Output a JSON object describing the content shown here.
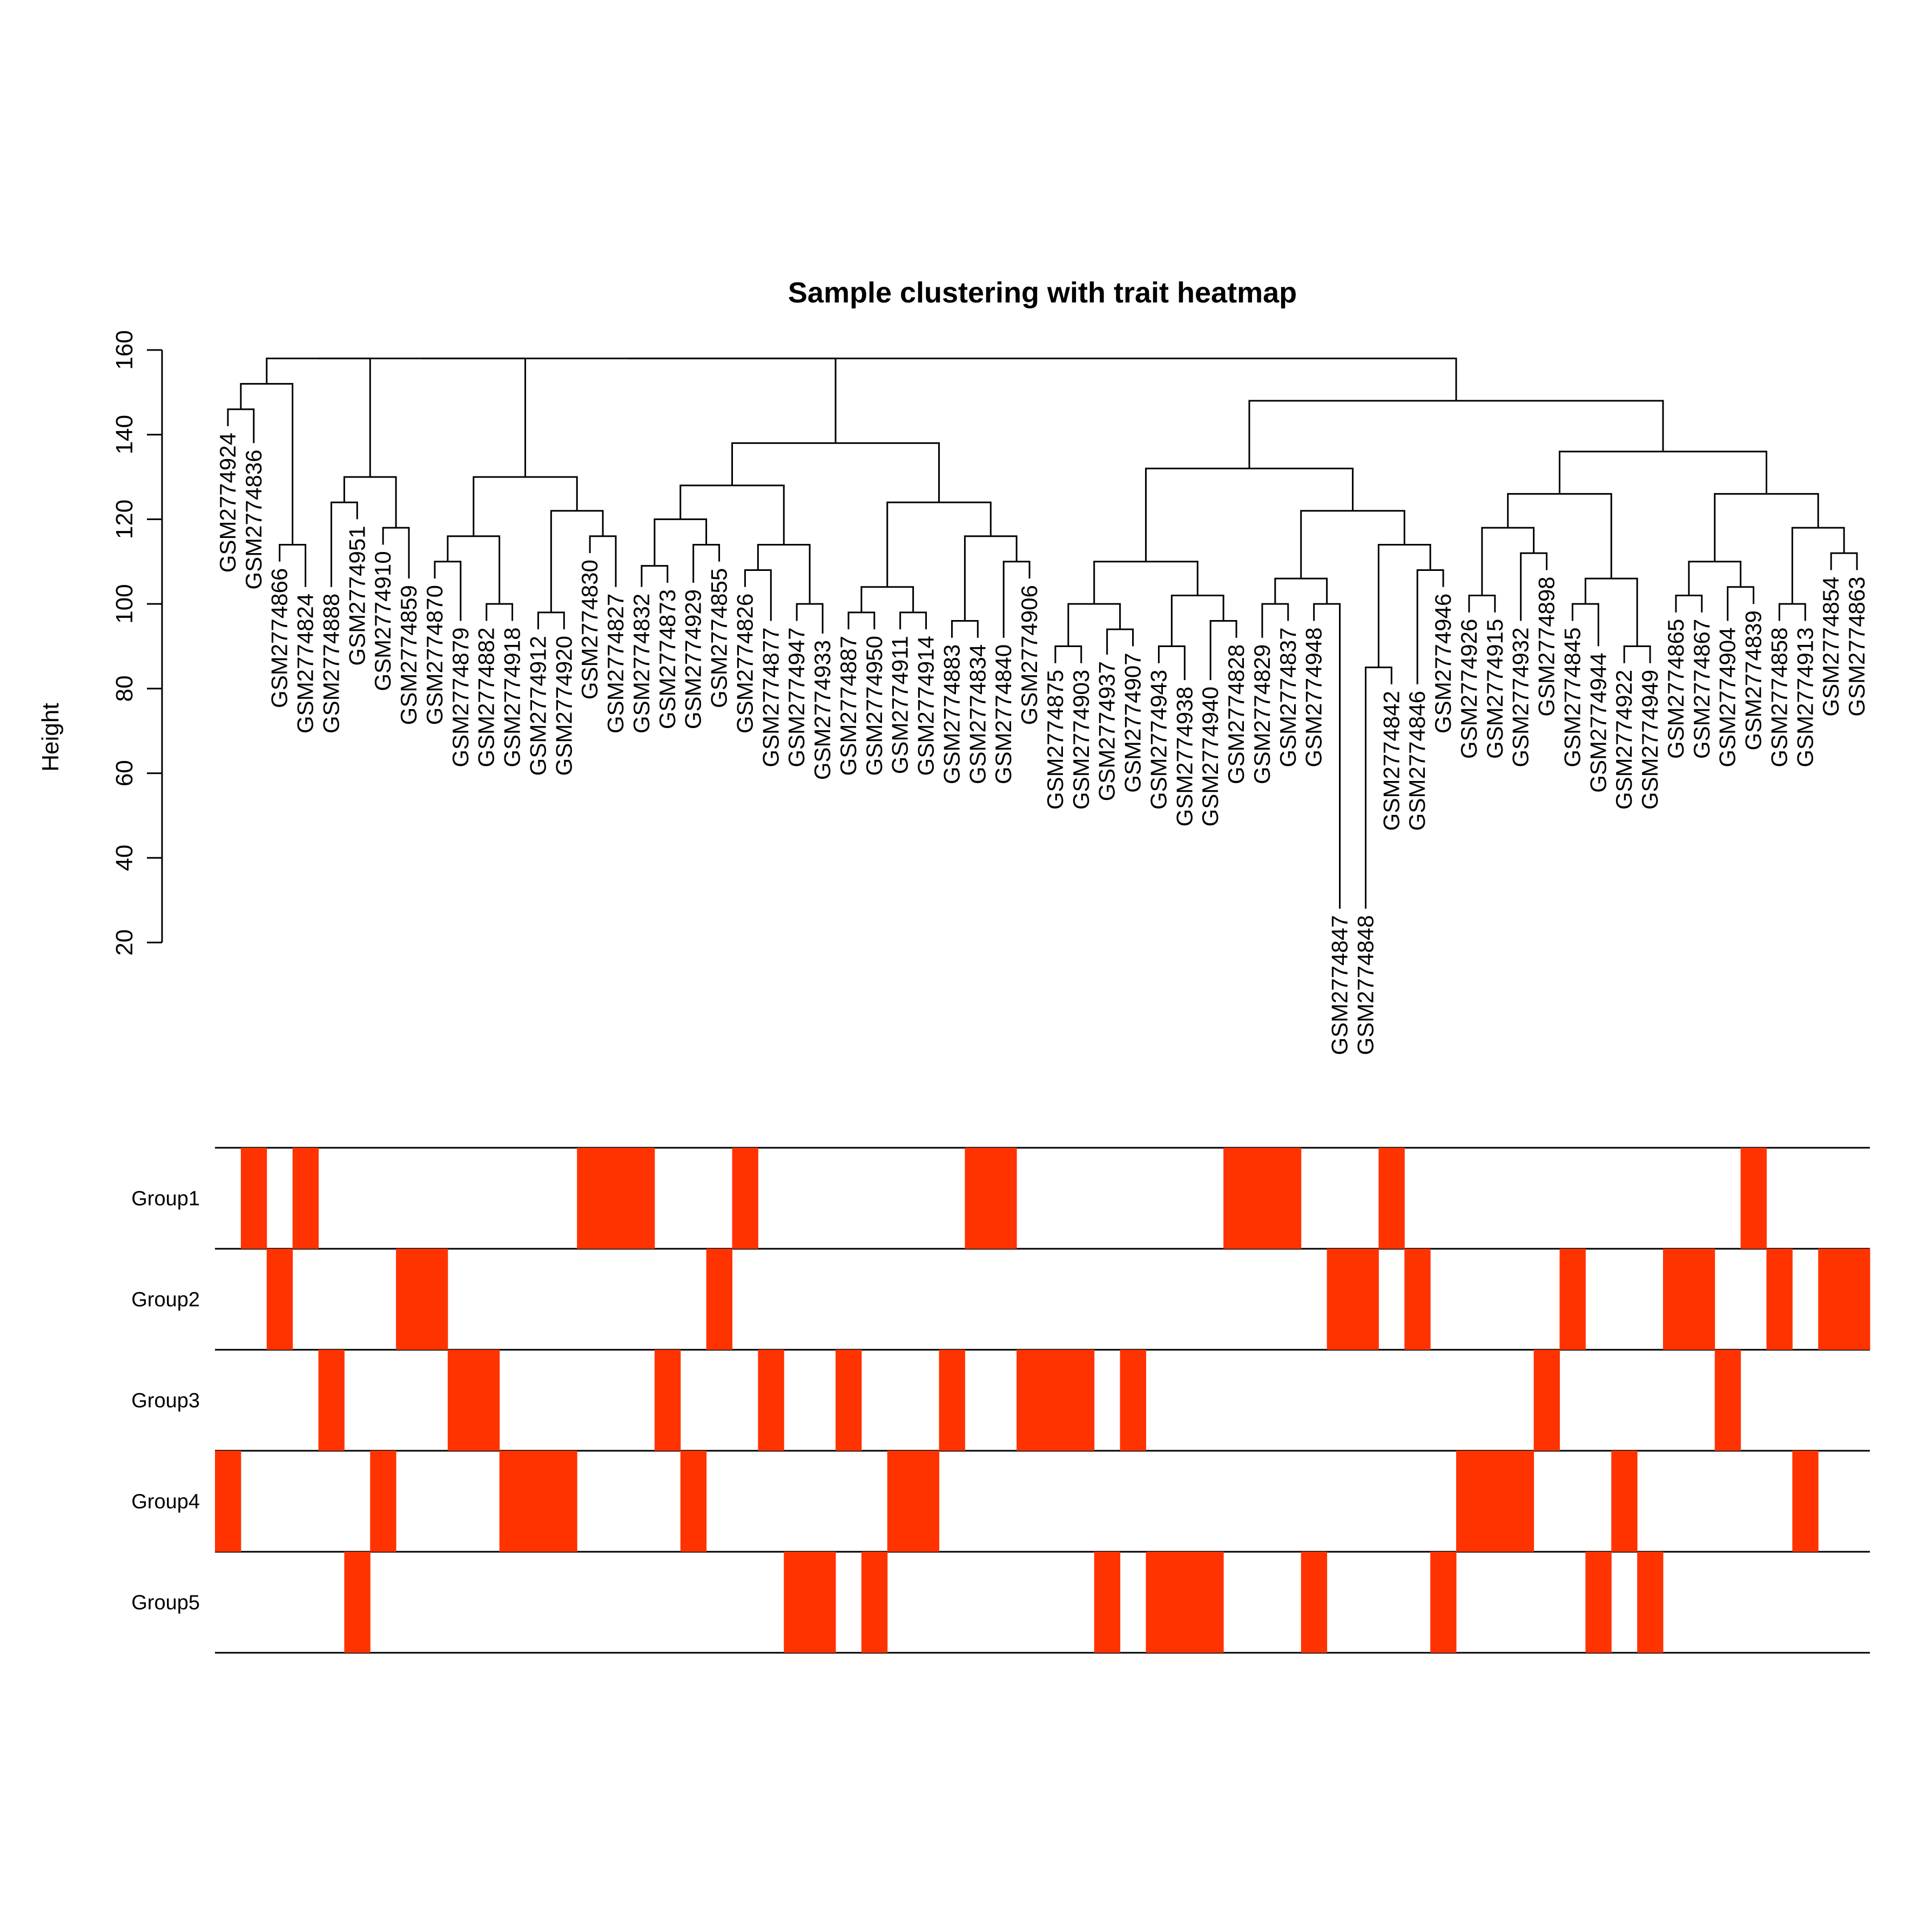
{
  "chart_data": {
    "type": "heatmap",
    "title": "Sample clustering with trait heatmap",
    "ylabel": "Height",
    "ylim": [
      20,
      160
    ],
    "yticks": [
      20,
      40,
      60,
      80,
      100,
      120,
      140,
      160
    ],
    "leaf_color": "#000000",
    "heat_color": "#ff3300",
    "background_color": "#ffffff",
    "leaves": [
      {
        "label": "GSM2774924",
        "row": 3
      },
      {
        "label": "GSM2774836",
        "row": 0
      },
      {
        "label": "GSM2774866",
        "row": 1
      },
      {
        "label": "GSM2774824",
        "row": 0
      },
      {
        "label": "GSM2774888",
        "row": 2
      },
      {
        "label": "GSM2774951",
        "row": 4
      },
      {
        "label": "GSM2774910",
        "row": 3
      },
      {
        "label": "GSM2774859",
        "row": 1
      },
      {
        "label": "GSM2774870",
        "row": 1
      },
      {
        "label": "GSM2774879",
        "row": 2
      },
      {
        "label": "GSM2774882",
        "row": 2
      },
      {
        "label": "GSM2774918",
        "row": 3
      },
      {
        "label": "GSM2774912",
        "row": 3
      },
      {
        "label": "GSM2774920",
        "row": 3
      },
      {
        "label": "GSM2774830",
        "row": 0
      },
      {
        "label": "GSM2774827",
        "row": 0
      },
      {
        "label": "GSM2774832",
        "row": 0
      },
      {
        "label": "GSM2774873",
        "row": 2
      },
      {
        "label": "GSM2774929",
        "row": 3
      },
      {
        "label": "GSM2774855",
        "row": 1
      },
      {
        "label": "GSM2774826",
        "row": 0
      },
      {
        "label": "GSM2774877",
        "row": 2
      },
      {
        "label": "GSM2774947",
        "row": 4
      },
      {
        "label": "GSM2774933",
        "row": 4
      },
      {
        "label": "GSM2774887",
        "row": 2
      },
      {
        "label": "GSM2774950",
        "row": 4
      },
      {
        "label": "GSM2774911",
        "row": 3
      },
      {
        "label": "GSM2774914",
        "row": 3
      },
      {
        "label": "GSM2774883",
        "row": 2
      },
      {
        "label": "GSM2774834",
        "row": 0
      },
      {
        "label": "GSM2774840",
        "row": 0
      },
      {
        "label": "GSM2774906",
        "row": 2
      },
      {
        "label": "GSM2774875",
        "row": 2
      },
      {
        "label": "GSM2774903",
        "row": 2
      },
      {
        "label": "GSM2774937",
        "row": 4
      },
      {
        "label": "GSM2774907",
        "row": 2
      },
      {
        "label": "GSM2774943",
        "row": 4
      },
      {
        "label": "GSM2774938",
        "row": 4
      },
      {
        "label": "GSM2774940",
        "row": 4
      },
      {
        "label": "GSM2774828",
        "row": 0
      },
      {
        "label": "GSM2774829",
        "row": 0
      },
      {
        "label": "GSM2774837",
        "row": 0
      },
      {
        "label": "GSM2774948",
        "row": 4
      },
      {
        "label": "GSM2774847",
        "row": 1
      },
      {
        "label": "GSM2774848",
        "row": 1
      },
      {
        "label": "GSM2774842",
        "row": 0
      },
      {
        "label": "GSM2774846",
        "row": 1
      },
      {
        "label": "GSM2774946",
        "row": 4
      },
      {
        "label": "GSM2774926",
        "row": 3
      },
      {
        "label": "GSM2774915",
        "row": 3
      },
      {
        "label": "GSM2774932",
        "row": 3
      },
      {
        "label": "GSM2774898",
        "row": 2
      },
      {
        "label": "GSM2774845",
        "row": 1
      },
      {
        "label": "GSM2774944",
        "row": 4
      },
      {
        "label": "GSM2774922",
        "row": 3
      },
      {
        "label": "GSM2774949",
        "row": 4
      },
      {
        "label": "GSM2774865",
        "row": 1
      },
      {
        "label": "GSM2774867",
        "row": 1
      },
      {
        "label": "GSM2774904",
        "row": 2
      },
      {
        "label": "GSM2774839",
        "row": 0
      },
      {
        "label": "GSM2774858",
        "row": 1
      },
      {
        "label": "GSM2774913",
        "row": 3
      },
      {
        "label": "GSM2774854",
        "row": 1
      },
      {
        "label": "GSM2774863",
        "row": 1
      }
    ],
    "merges": [
      [
        0,
        3,
        1,
        2
      ],
      [
        1,
        3,
        3,
        3
      ],
      [
        2,
        3,
        4,
        5
      ],
      [
        3,
        3,
        6,
        7
      ],
      [
        4,
        3,
        8,
        11
      ],
      [
        5,
        3,
        10,
        12
      ],
      [
        6,
        3,
        11,
        12
      ],
      [
        7,
        3,
        13,
        15
      ],
      [
        8,
        3,
        14,
        17
      ],
      [
        9,
        3,
        16,
        17
      ],
      [
        10,
        3,
        18,
        20
      ],
      [
        11,
        3,
        19,
        21
      ],
      [
        12,
        3,
        20,
        22
      ],
      [
        13,
        3,
        22,
        24
      ],
      [
        14,
        3,
        23,
        25
      ],
      [
        15,
        3,
        24,
        26
      ],
      [
        16,
        3,
        26,
        27
      ],
      [
        17,
        3,
        28,
        30
      ],
      [
        18,
        3,
        29,
        31
      ],
      [
        19,
        3,
        30,
        32
      ],
      [
        20,
        3,
        33,
        35
      ],
      [
        21,
        3,
        34,
        35
      ],
      [
        22,
        3,
        36,
        38
      ],
      [
        23,
        3,
        37,
        38
      ],
      [
        24,
        3,
        39,
        40
      ],
      [
        25,
        3,
        41,
        43
      ],
      [
        26,
        3,
        42,
        43
      ],
      [
        27,
        3,
        44,
        46
      ],
      [
        28,
        3,
        45,
        48
      ],
      [
        29,
        3,
        47,
        49
      ],
      [
        30,
        3,
        48,
        50
      ],
      [
        31,
        3,
        51,
        52
      ],
      [
        32,
        3,
        52,
        53
      ],
      [
        33,
        3,
        54,
        56
      ],
      [
        34,
        3,
        55,
        57
      ],
      [
        35,
        3,
        57,
        59
      ],
      [
        36,
        3,
        58,
        60
      ],
      [
        37,
        3,
        60,
        62
      ],
      [
        38,
        3,
        61,
        62
      ],
      [
        39,
        3,
        63,
        64
      ],
      [
        40,
        3,
        64,
        64
      ]
    ],
    "rows": [
      "Group1",
      "Group2",
      "Group3",
      "Group4",
      "Group5"
    ]
  }
}
